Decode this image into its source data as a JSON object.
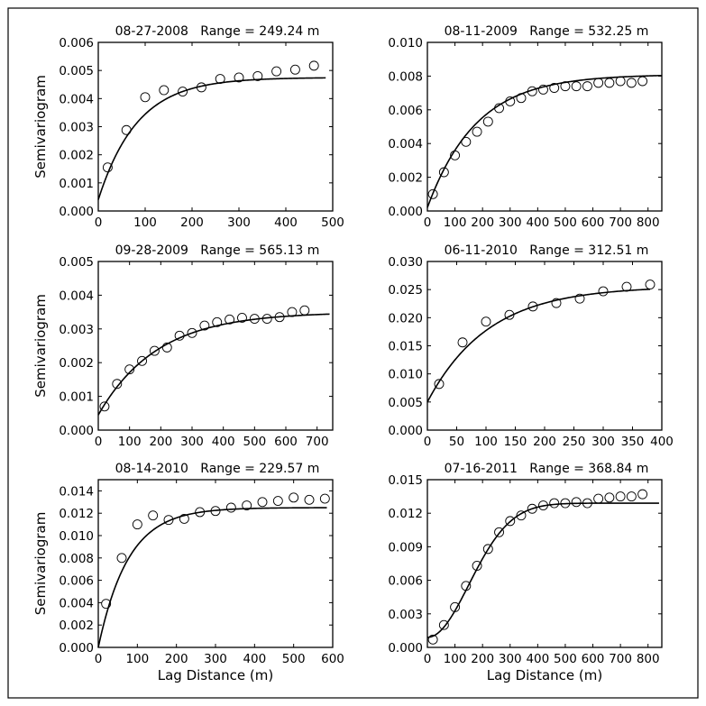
{
  "chart_data": [
    {
      "type": "scatter",
      "title": "08-27-2008   Range = 249.24 m",
      "ylabel": "Semivariogram",
      "xlabel": "",
      "xlim": [
        0,
        500
      ],
      "ylim": [
        0,
        0.006
      ],
      "xticks": [
        0,
        100,
        200,
        300,
        400,
        500
      ],
      "xtick_labels": [
        "0",
        "100",
        "200",
        "300",
        "400",
        "500"
      ],
      "yticks": [
        0,
        0.001,
        0.002,
        0.003,
        0.004,
        0.005,
        0.006
      ],
      "ytick_labels": [
        "0.000",
        "0.001",
        "0.002",
        "0.003",
        "0.004",
        "0.005",
        "0.006"
      ],
      "x": [
        20,
        60,
        100,
        140,
        180,
        220,
        260,
        300,
        340,
        380,
        420,
        460
      ],
      "y": [
        0.00155,
        0.00288,
        0.00405,
        0.0043,
        0.00425,
        0.0044,
        0.0047,
        0.00475,
        0.0048,
        0.00497,
        0.00503,
        0.00517
      ],
      "model": {
        "type": "exponential",
        "nugget": 0.0004,
        "sill": 0.00475,
        "range": 249.24,
        "xmax": 485
      }
    },
    {
      "type": "scatter",
      "title": "08-11-2009   Range = 532.25 m",
      "ylabel": "",
      "xlabel": "",
      "xlim": [
        0,
        850
      ],
      "ylim": [
        0,
        0.01
      ],
      "xticks": [
        0,
        100,
        200,
        300,
        400,
        500,
        600,
        700,
        800
      ],
      "xtick_labels": [
        "0",
        "100",
        "200",
        "300",
        "400",
        "500",
        "600",
        "700",
        "800"
      ],
      "yticks": [
        0,
        0.002,
        0.004,
        0.006,
        0.008,
        0.01
      ],
      "ytick_labels": [
        "0.000",
        "0.002",
        "0.004",
        "0.006",
        "0.008",
        "0.010"
      ],
      "x": [
        20,
        60,
        100,
        140,
        180,
        220,
        260,
        300,
        340,
        380,
        420,
        460,
        500,
        540,
        580,
        620,
        660,
        700,
        740,
        780
      ],
      "y": [
        0.001,
        0.0023,
        0.0033,
        0.0041,
        0.0047,
        0.0053,
        0.0061,
        0.0065,
        0.0067,
        0.0071,
        0.0072,
        0.0073,
        0.0074,
        0.0074,
        0.0074,
        0.0076,
        0.0076,
        0.0077,
        0.0076,
        0.0077
      ],
      "model": {
        "type": "exponential",
        "nugget": 0.0002,
        "sill": 0.0081,
        "range": 532.25,
        "xmax": 850
      }
    },
    {
      "type": "scatter",
      "title": "09-28-2009   Range = 565.13 m",
      "ylabel": "Semivariogram",
      "xlabel": "",
      "xlim": [
        0,
        750
      ],
      "ylim": [
        0,
        0.005
      ],
      "xticks": [
        0,
        100,
        200,
        300,
        400,
        500,
        600,
        700
      ],
      "xtick_labels": [
        "0",
        "100",
        "200",
        "300",
        "400",
        "500",
        "600",
        "700"
      ],
      "yticks": [
        0,
        0.001,
        0.002,
        0.003,
        0.004,
        0.005
      ],
      "ytick_labels": [
        "0.000",
        "0.001",
        "0.002",
        "0.003",
        "0.004",
        "0.005"
      ],
      "x": [
        20,
        60,
        100,
        140,
        180,
        220,
        260,
        300,
        340,
        380,
        420,
        460,
        500,
        540,
        580,
        620,
        660
      ],
      "y": [
        0.0007,
        0.00137,
        0.0018,
        0.00205,
        0.00235,
        0.00245,
        0.0028,
        0.00288,
        0.0031,
        0.0032,
        0.00328,
        0.00333,
        0.0033,
        0.0033,
        0.00335,
        0.0035,
        0.00355
      ],
      "model": {
        "type": "exponential",
        "nugget": 0.00045,
        "sill": 0.0035,
        "range": 565.13,
        "xmax": 740
      }
    },
    {
      "type": "scatter",
      "title": "06-11-2010   Range = 312.51 m",
      "ylabel": "",
      "xlabel": "",
      "xlim": [
        0,
        400
      ],
      "ylim": [
        0,
        0.03
      ],
      "xticks": [
        0,
        50,
        100,
        150,
        200,
        250,
        300,
        350,
        400
      ],
      "xtick_labels": [
        "0",
        "50",
        "100",
        "150",
        "200",
        "250",
        "300",
        "350",
        "400"
      ],
      "yticks": [
        0,
        0.005,
        0.01,
        0.015,
        0.02,
        0.025,
        0.03
      ],
      "ytick_labels": [
        "0.000",
        "0.005",
        "0.010",
        "0.015",
        "0.020",
        "0.025",
        "0.030"
      ],
      "x": [
        20,
        60,
        100,
        140,
        180,
        220,
        260,
        300,
        340,
        380
      ],
      "y": [
        0.0082,
        0.0156,
        0.0193,
        0.0205,
        0.022,
        0.0226,
        0.0234,
        0.0247,
        0.0255,
        0.0259
      ],
      "model": {
        "type": "exponential",
        "nugget": 0.005,
        "sill": 0.0256,
        "range": 312.51,
        "xmax": 380
      }
    },
    {
      "type": "scatter",
      "title": "08-14-2010   Range = 229.57 m",
      "ylabel": "Semivariogram",
      "xlabel": "Lag Distance (m)",
      "xlim": [
        0,
        600
      ],
      "ylim": [
        0,
        0.015
      ],
      "xticks": [
        0,
        100,
        200,
        300,
        400,
        500,
        600
      ],
      "xtick_labels": [
        "0",
        "100",
        "200",
        "300",
        "400",
        "500",
        "600"
      ],
      "yticks": [
        0,
        0.002,
        0.004,
        0.006,
        0.008,
        0.01,
        0.012,
        0.014
      ],
      "ytick_labels": [
        "0.000",
        "0.002",
        "0.004",
        "0.006",
        "0.008",
        "0.010",
        "0.012",
        "0.014"
      ],
      "x": [
        20,
        60,
        100,
        140,
        180,
        220,
        260,
        300,
        340,
        380,
        420,
        460,
        500,
        540,
        580
      ],
      "y": [
        0.0039,
        0.008,
        0.011,
        0.0118,
        0.0114,
        0.0115,
        0.0121,
        0.0122,
        0.0125,
        0.0127,
        0.013,
        0.0131,
        0.0134,
        0.0132,
        0.0133
      ],
      "model": {
        "type": "exponential",
        "nugget": 0.0,
        "sill": 0.0125,
        "range": 229.57,
        "xmax": 585
      }
    },
    {
      "type": "scatter",
      "title": "07-16-2011   Range = 368.84 m",
      "ylabel": "",
      "xlabel": "Lag Distance (m)",
      "xlim": [
        0,
        850
      ],
      "ylim": [
        0,
        0.015
      ],
      "xticks": [
        0,
        100,
        200,
        300,
        400,
        500,
        600,
        700,
        800
      ],
      "xtick_labels": [
        "0",
        "100",
        "200",
        "300",
        "400",
        "500",
        "600",
        "700",
        "800"
      ],
      "yticks": [
        0,
        0.003,
        0.006,
        0.009,
        0.012,
        0.015
      ],
      "ytick_labels": [
        "0.000",
        "0.003",
        "0.006",
        "0.009",
        "0.012",
        "0.015"
      ],
      "x": [
        20,
        60,
        100,
        140,
        180,
        220,
        260,
        300,
        340,
        380,
        420,
        460,
        500,
        540,
        580,
        620,
        660,
        700,
        740,
        780
      ],
      "y": [
        0.0007,
        0.002,
        0.0036,
        0.0055,
        0.0073,
        0.0088,
        0.0103,
        0.0113,
        0.0118,
        0.0124,
        0.0127,
        0.0129,
        0.0129,
        0.013,
        0.0129,
        0.0133,
        0.0134,
        0.0135,
        0.0135,
        0.0137
      ],
      "model": {
        "type": "gaussian",
        "nugget": 0.0009,
        "sill": 0.0129,
        "range": 368.84,
        "xmax": 840
      }
    }
  ]
}
